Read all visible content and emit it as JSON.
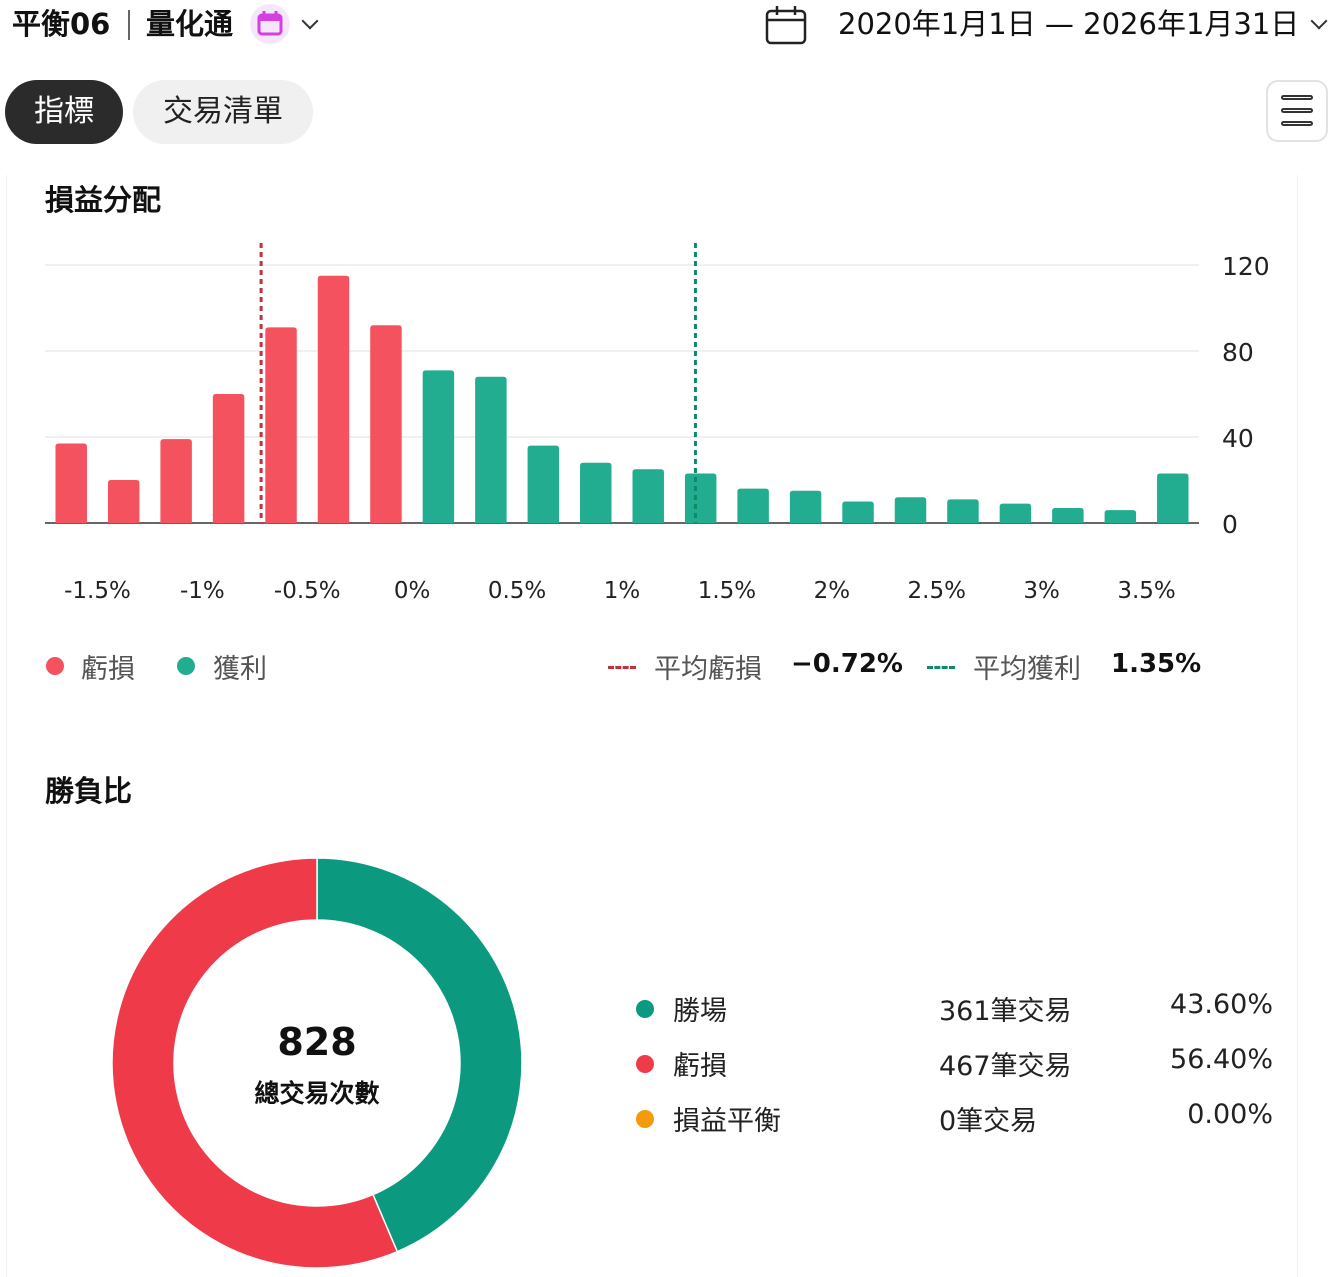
{
  "header": {
    "strategy_name": "平衡06",
    "product_name": "量化通",
    "date_range": "2020年1月1日 — 2026年1月31日"
  },
  "tabs": [
    {
      "label": "指標",
      "active": true
    },
    {
      "label": "交易清單",
      "active": false
    }
  ],
  "pnl_distribution": {
    "title": "損益分配",
    "legend": {
      "loss": "虧損",
      "profit": "獲利",
      "avg_loss_label": "平均虧損",
      "avg_loss_value": "−0.72%",
      "avg_profit_label": "平均獲利",
      "avg_profit_value": "1.35%"
    }
  },
  "win_loss": {
    "title": "勝負比",
    "total_value": "828",
    "total_label": "總交易次數",
    "rows": [
      {
        "label": "勝場",
        "count": "361筆交易",
        "pct": "43.60%",
        "color": "#0b9a80"
      },
      {
        "label": "虧損",
        "count": "467筆交易",
        "pct": "56.40%",
        "color": "#ef3a4a"
      },
      {
        "label": "損益平衡",
        "count": "0筆交易",
        "pct": "0.00%",
        "color": "#f59a0c"
      }
    ]
  },
  "colors": {
    "loss": "#f5525f",
    "profit": "#22ad91",
    "avg_loss_line": "#c0323c",
    "avg_profit_line": "#0d8a6a",
    "donut_win": "#0b9a80",
    "donut_loss": "#ef3a4a"
  },
  "chart_data": [
    {
      "type": "bar",
      "title": "損益分配",
      "x_tick_labels": [
        "-1.5%",
        "-1%",
        "-0.5%",
        "0%",
        "0.5%",
        "1%",
        "1.5%",
        "2%",
        "2.5%",
        "3%",
        "3.5%"
      ],
      "x_tick_values": [
        -1.5,
        -1.0,
        -0.5,
        0.0,
        0.5,
        1.0,
        1.5,
        2.0,
        2.5,
        3.0,
        3.5
      ],
      "bar_centers": [
        -1.625,
        -1.375,
        -1.125,
        -0.875,
        -0.625,
        -0.375,
        -0.125,
        0.125,
        0.375,
        0.625,
        0.875,
        1.125,
        1.375,
        1.625,
        1.875,
        2.125,
        2.375,
        2.625,
        2.875,
        3.125,
        3.375,
        3.625
      ],
      "values": [
        37,
        20,
        39,
        60,
        91,
        115,
        92,
        71,
        68,
        36,
        28,
        25,
        23,
        16,
        15,
        10,
        12,
        11,
        9,
        7,
        6,
        23
      ],
      "categories": [
        "loss",
        "loss",
        "loss",
        "loss",
        "loss",
        "loss",
        "loss",
        "profit",
        "profit",
        "profit",
        "profit",
        "profit",
        "profit",
        "profit",
        "profit",
        "profit",
        "profit",
        "profit",
        "profit",
        "profit",
        "profit",
        "profit"
      ],
      "xlim": [
        -1.75,
        3.75
      ],
      "ylim": [
        0,
        120
      ],
      "y_ticks": [
        0,
        40,
        80,
        120
      ],
      "avg_loss": -0.72,
      "avg_profit": 1.35,
      "grid": true,
      "y_axis_side": "right"
    },
    {
      "type": "pie",
      "title": "勝負比",
      "labels": [
        "勝場",
        "虧損",
        "損益平衡"
      ],
      "values": [
        361,
        467,
        0
      ],
      "percent": [
        43.6,
        56.4,
        0.0
      ],
      "total": 828
    }
  ]
}
